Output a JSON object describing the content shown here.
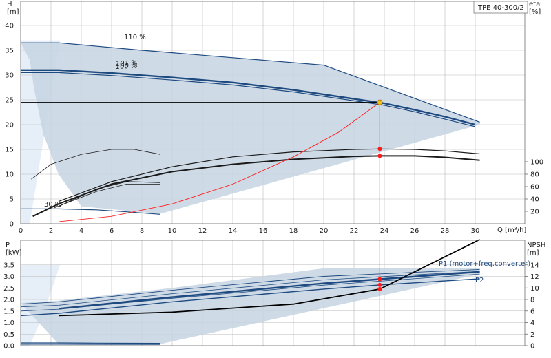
{
  "chart_data": [
    {
      "type": "line",
      "title": "TPE 40-300/2",
      "xlabel": "Q [m³/h]",
      "ylabel": "H\n[m]",
      "ylabel_right": "eta\n[%]",
      "xlim": [
        0,
        32
      ],
      "ylim": [
        0,
        45
      ],
      "ylim_right": [
        0,
        125
      ],
      "x_ticks": [
        "0",
        "2",
        "4",
        "6",
        "8",
        "10",
        "12",
        "14",
        "16",
        "18",
        "20",
        "22",
        "24",
        "26",
        "28",
        "30"
      ],
      "y_ticks": [
        "0",
        "5",
        "10",
        "15",
        "20",
        "25",
        "30",
        "35",
        "40"
      ],
      "y_right_ticks": [
        "20",
        "40",
        "60",
        "80",
        "100"
      ],
      "grid": true,
      "colors": {
        "envelope": "#c5d3e2",
        "curve": "#1e4a80",
        "eta": "#1a1a1a",
        "system": "#ff2020",
        "duty": "#f2c011",
        "marker": "#ff1a1a"
      },
      "annotations": [
        "110 %",
        "101 %",
        "100 %",
        "30 %"
      ],
      "envelope": {
        "x": [
          0,
          2.5,
          8,
          14,
          20,
          30.3,
          30.3,
          9.2,
          4,
          2.5,
          1.5,
          0.9,
          0.6,
          0
        ],
        "y": [
          36.5,
          36.5,
          35,
          33.5,
          32,
          20.5,
          20,
          2,
          3.5,
          10,
          18,
          27,
          33,
          36.5
        ]
      },
      "series": [
        {
          "name": "110 %",
          "x": [
            0,
            2.5,
            8,
            14,
            20,
            30.3
          ],
          "y": [
            36.5,
            36.5,
            35,
            33.5,
            32,
            20.5
          ]
        },
        {
          "name": "101 %",
          "x": [
            0,
            2.5,
            6,
            10,
            14,
            18,
            22,
            24,
            26,
            28,
            30
          ],
          "y": [
            31,
            31,
            30.4,
            29.5,
            28.5,
            27,
            25.2,
            24.3,
            23,
            21.6,
            20
          ]
        },
        {
          "name": "100 %",
          "x": [
            0,
            2.5,
            6,
            10,
            14,
            18,
            22,
            24,
            26,
            28,
            30
          ],
          "y": [
            30.5,
            30.5,
            29.9,
            29,
            28,
            26.6,
            24.8,
            23.9,
            22.6,
            21.1,
            19.6
          ]
        },
        {
          "name": "30 %",
          "x": [
            0,
            2.5,
            5,
            7,
            9.2
          ],
          "y": [
            3,
            3,
            2.8,
            2.4,
            1.9
          ]
        },
        {
          "name": "eta 110 %",
          "x": [
            0.7,
            2,
            4,
            6,
            7.5,
            9.2
          ],
          "y": [
            9,
            12,
            14,
            15,
            15,
            14
          ]
        },
        {
          "name": "eta 30 %",
          "x": [
            2.5,
            5,
            7,
            9.2
          ],
          "y": [
            3.5,
            7,
            8.5,
            8.3
          ]
        },
        {
          "name": "eta 100 %",
          "x": [
            0.8,
            2.5,
            6,
            10,
            14,
            18,
            22,
            23.7,
            26,
            28,
            30.3
          ],
          "y": [
            1.5,
            4,
            8,
            10.5,
            12,
            13,
            13.6,
            13.7,
            13.7,
            13.4,
            12.8
          ]
        },
        {
          "name": "eta 101 %",
          "x": [
            2.5,
            6,
            10,
            14,
            18,
            22,
            23.7,
            26,
            28,
            30.3
          ],
          "y": [
            4.5,
            8.5,
            11.5,
            13.5,
            14.5,
            15,
            15.1,
            15,
            14.7,
            14.1
          ]
        },
        {
          "name": "system curve",
          "x": [
            2.5,
            6,
            10,
            14,
            18,
            21,
            23.7
          ],
          "y": [
            0.4,
            1.5,
            4,
            8,
            13.5,
            18.5,
            24.5
          ]
        },
        {
          "name": "duty line",
          "x": [
            0,
            23.7
          ],
          "y": [
            24.5,
            24.5
          ]
        }
      ],
      "points": [
        {
          "name": "duty point",
          "x": 23.7,
          "y": 24.5
        },
        {
          "name": "eta point 1",
          "x": 23.7,
          "y": 15.1
        },
        {
          "name": "eta point 2",
          "x": 23.7,
          "y": 13.7
        }
      ]
    },
    {
      "type": "line",
      "xlabel": "",
      "ylabel": "P\n[kW]",
      "ylabel_right": "NPSH\n[m]",
      "xlim": [
        0,
        32
      ],
      "ylim": [
        0,
        3.5
      ],
      "ylim_right": [
        0,
        16
      ],
      "y_ticks": [
        "0.0",
        "0.5",
        "1.0",
        "1.5",
        "2.0",
        "2.5",
        "3.0",
        "3.5"
      ],
      "y_right_ticks": [
        "0",
        "2",
        "4",
        "6",
        "8",
        "10",
        "12",
        "14"
      ],
      "grid": true,
      "colors": {
        "envelope": "#c5d3e2",
        "curve": "#1e4a80",
        "npsh": "#000000",
        "marker": "#ff1a1a"
      },
      "legend": [
        "P1 (motor+freq.converter)",
        "P2"
      ],
      "envelope": {
        "x": [
          0,
          2.5,
          10,
          20,
          30.3,
          30.3,
          9.2,
          2.5,
          0
        ],
        "y": [
          1.85,
          1.95,
          2.5,
          3.35,
          3.35,
          3.1,
          0.07,
          0.07,
          1.85
        ]
      },
      "series": [
        {
          "name": "P1 (motor+freq.converter)",
          "x": [
            2.5,
            10,
            20,
            23.7,
            30.3
          ],
          "y": [
            1.6,
            2.1,
            2.7,
            2.88,
            3.2
          ]
        },
        {
          "name": "P2",
          "x": [
            0,
            2.5,
            10,
            20,
            23.7,
            30.3
          ],
          "y": [
            1.3,
            1.4,
            1.9,
            2.45,
            2.63,
            2.9
          ]
        },
        {
          "name": "P1 110 %",
          "x": [
            0,
            2.5,
            10,
            20,
            30.3
          ],
          "y": [
            1.8,
            1.9,
            2.4,
            3.0,
            3.3
          ]
        },
        {
          "name": "P1 30 %",
          "x": [
            0,
            2.5,
            5,
            9.2
          ],
          "y": [
            0.12,
            0.12,
            0.11,
            0.1
          ]
        },
        {
          "name": "NPSH",
          "x": [
            2.5,
            10,
            18,
            23.7,
            30.3
          ],
          "y": [
            1.3,
            1.45,
            1.8,
            2.45,
            4.6
          ]
        }
      ],
      "points": [
        {
          "name": "P1 point",
          "x": 23.7,
          "y": 2.88
        },
        {
          "name": "P2 point",
          "x": 23.7,
          "y": 2.63
        },
        {
          "name": "NPSH point",
          "x": 23.7,
          "y": 2.45
        }
      ]
    }
  ]
}
